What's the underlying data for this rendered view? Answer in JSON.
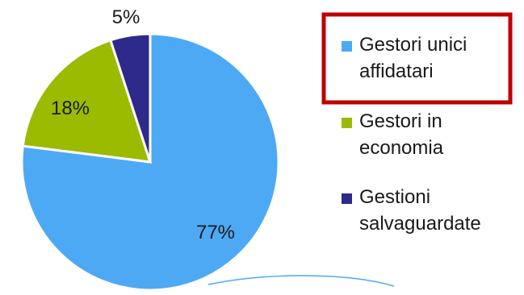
{
  "chart_data": {
    "type": "pie",
    "categories": [
      "Gestori unici affidatari",
      "Gestori in economia",
      "Gestioni salvaguardate"
    ],
    "values": [
      77,
      18,
      5
    ],
    "value_labels": [
      "77%",
      "18%",
      "5%"
    ],
    "colors": [
      "#4ea9f5",
      "#9bbb00",
      "#2e2a8c"
    ],
    "legend": {
      "position": "right",
      "items": [
        {
          "label_lines": [
            "Gestori unici",
            "affidatari"
          ],
          "color": "#4ea9f5",
          "highlighted": true
        },
        {
          "label_lines": [
            "Gestori in",
            "economia"
          ],
          "color": "#9bbb00",
          "highlighted": false
        },
        {
          "label_lines": [
            "Gestioni",
            "salvaguardate"
          ],
          "color": "#2e2a8c",
          "highlighted": false
        }
      ]
    },
    "highlight_color": "#c00000"
  }
}
